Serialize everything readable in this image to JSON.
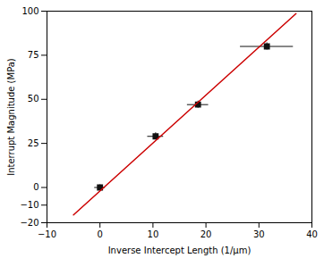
{
  "chart_data": {
    "type": "scatter",
    "xlabel": "Inverse Intercept Length (1/μm)",
    "ylabel": "Interrupt Magnitude (MPa)",
    "series": [
      {
        "type": "scatter",
        "x": [
          0,
          10.5,
          18.5,
          31.5
        ],
        "values": [
          0,
          29,
          47,
          80
        ],
        "xerr": [
          1.0,
          1.5,
          2.0,
          5.0
        ],
        "yerr": [
          1.5,
          2.0,
          2.0,
          2.0
        ],
        "color": "#111111",
        "marker": "square"
      },
      {
        "type": "line",
        "x": [
          -5,
          37
        ],
        "values": [
          -15.6,
          98.64
        ],
        "color": "#cc0000"
      }
    ],
    "xlim": [
      -10,
      40
    ],
    "ylim": [
      -20,
      100
    ],
    "xticks": [
      -10,
      0,
      10,
      20,
      30,
      40
    ],
    "yticks": [
      -20,
      -10,
      0,
      25,
      50,
      75,
      100
    ],
    "grid": false
  }
}
